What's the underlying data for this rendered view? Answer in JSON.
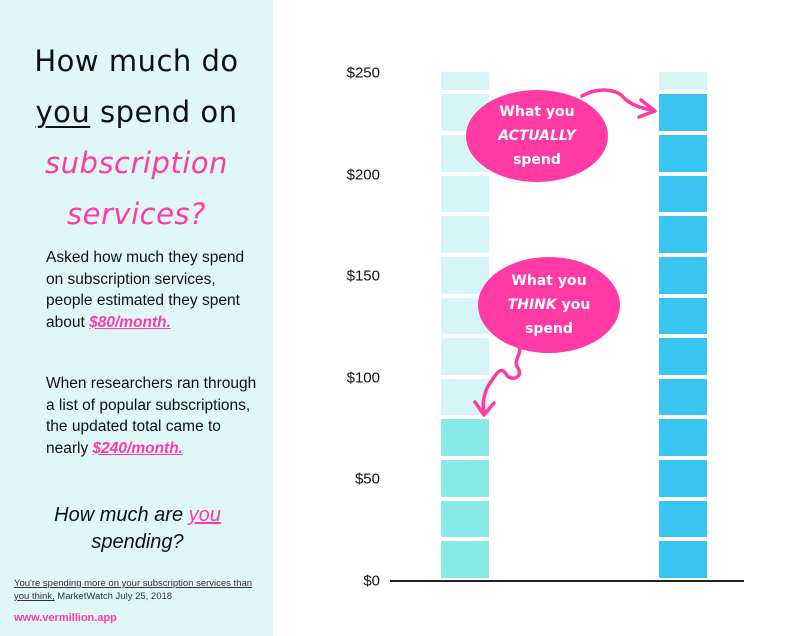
{
  "panel": {
    "headline": {
      "line1": "How much do",
      "line2_underlined": "you",
      "line2_rest": " spend on",
      "line3": "subscription",
      "line4": "services?"
    },
    "para1": {
      "text": "Asked how much they spend on subscription services, people estimated they spent about ",
      "highlight": "$80/month."
    },
    "para2": {
      "text": "When researchers ran through a list of popular subscriptions, the updated total came to nearly ",
      "highlight": "$240/month."
    },
    "question": {
      "before": "How much are ",
      "highlight": "you",
      "after": "spending?"
    },
    "source": {
      "link_text": "You're spending more on your subscription services than you think,",
      "rest": " MarketWatch July 25, 2018"
    },
    "site": "www.vermillion.app"
  },
  "annotations": {
    "actually": {
      "line1": "What you",
      "line2": "ACTUALLY",
      "line3": "spend"
    },
    "think": {
      "line1": "What you",
      "line2": "THINK",
      "line2_rest": " you",
      "line3": "spend"
    }
  },
  "chart_data": {
    "type": "bar",
    "categories": [
      "What you THINK you spend",
      "What you ACTUALLY spend"
    ],
    "values": [
      80,
      240
    ],
    "segment_size": 20,
    "ylim": [
      0,
      250
    ],
    "yticks": [
      0,
      50,
      100,
      150,
      200,
      250
    ],
    "ytick_labels": [
      "$0",
      "$50",
      "$100",
      "$150",
      "$200",
      "$250"
    ],
    "colors": {
      "think_filled": "#89e9e6",
      "actual_filled": "#38c6f0",
      "empty": "#d6f5f7",
      "accent": "#ff3aa5"
    }
  }
}
